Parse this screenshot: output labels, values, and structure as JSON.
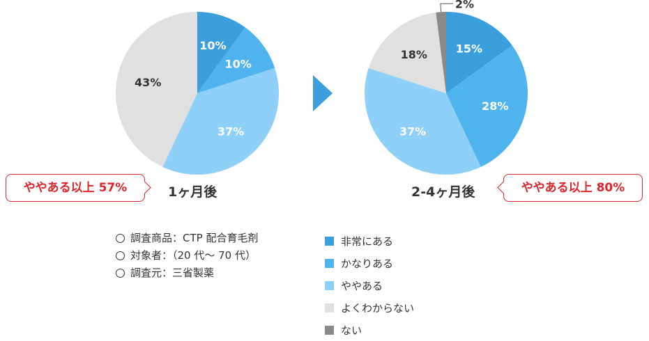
{
  "chart_data": [
    {
      "type": "pie",
      "title": "1ヶ月後",
      "slices": [
        {
          "category": "非常にある",
          "value": 10,
          "label": "10%"
        },
        {
          "category": "かなりある",
          "value": 10,
          "label": "10%"
        },
        {
          "category": "ややある",
          "value": 37,
          "label": "37%"
        },
        {
          "category": "よくわからない",
          "value": 43,
          "label": "43%"
        }
      ]
    },
    {
      "type": "pie",
      "title": "2-4ヶ月後",
      "slices": [
        {
          "category": "非常にある",
          "value": 15,
          "label": "15%"
        },
        {
          "category": "かなりある",
          "value": 28,
          "label": "28%"
        },
        {
          "category": "ややある",
          "value": 37,
          "label": "37%"
        },
        {
          "category": "よくわからない",
          "value": 18,
          "label": "18%"
        },
        {
          "category": "ない",
          "value": 2,
          "label": "2%"
        }
      ]
    }
  ],
  "callouts": {
    "left": "ややある以上 57%",
    "right": "ややある以上 80%"
  },
  "colors": {
    "非常にある": "#3a9fdc",
    "かなりある": "#4fb3ee",
    "ややある": "#8fd0f8",
    "よくわからない": "#e0e0e0",
    "ない": "#8a8a8a",
    "arrow": "#3a9fdc",
    "callout": "#e0242b"
  },
  "notes": [
    "調査商品：CTP 配合育毛剤",
    "対象者：（20 代〜 70 代）",
    "調査元：三省製薬"
  ],
  "legend": [
    {
      "label": "非常にある",
      "color": "#3a9fdc"
    },
    {
      "label": "かなりある",
      "color": "#4fb3ee"
    },
    {
      "label": "ややある",
      "color": "#8fd0f8"
    },
    {
      "label": "よくわからない",
      "color": "#e0e0e0"
    },
    {
      "label": "ない",
      "color": "#8a8a8a"
    }
  ]
}
